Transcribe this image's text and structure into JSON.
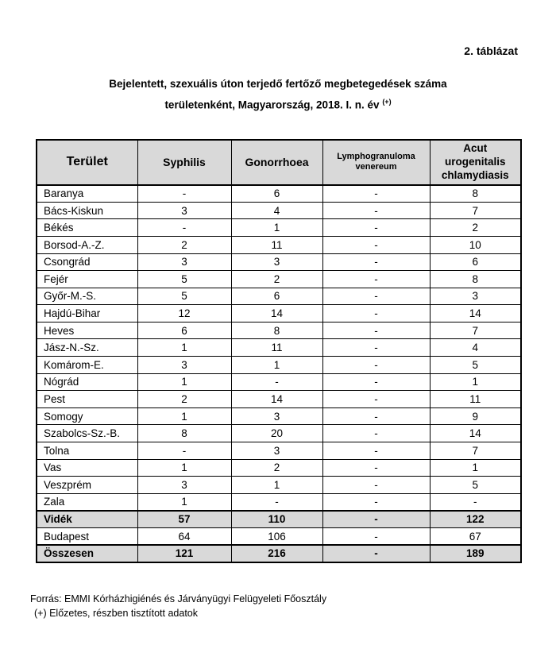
{
  "page": {
    "table_label": "2. táblázat",
    "title_line1": "Bejelentett, szexuális úton terjedő fertőző megbetegedések száma",
    "title_line2": "területenként, Magyarország, 2018. I. n. év",
    "title_superscript": "(+)",
    "footer_source": "Forrás: EMMI Kórházhigiénés és Járványügyi Felügyeleti Főosztály",
    "footer_note": "(+) Előzetes, részben tisztított adatok"
  },
  "table": {
    "columns": [
      "Terület",
      "Syphilis",
      "Gonorrhoea",
      "Lymphogranuloma venereum",
      "Acut urogenitalis chlamydiasis"
    ],
    "rows": [
      {
        "name": "Baranya",
        "values": [
          "-",
          "6",
          "-",
          "8"
        ],
        "summary": false
      },
      {
        "name": "Bács-Kiskun",
        "values": [
          "3",
          "4",
          "-",
          "7"
        ],
        "summary": false
      },
      {
        "name": "Békés",
        "values": [
          "-",
          "1",
          "-",
          "2"
        ],
        "summary": false
      },
      {
        "name": "Borsod-A.-Z.",
        "values": [
          "2",
          "11",
          "-",
          "10"
        ],
        "summary": false
      },
      {
        "name": "Csongrád",
        "values": [
          "3",
          "3",
          "-",
          "6"
        ],
        "summary": false
      },
      {
        "name": "Fejér",
        "values": [
          "5",
          "2",
          "-",
          "8"
        ],
        "summary": false
      },
      {
        "name": "Győr-M.-S.",
        "values": [
          "5",
          "6",
          "-",
          "3"
        ],
        "summary": false
      },
      {
        "name": "Hajdú-Bihar",
        "values": [
          "12",
          "14",
          "-",
          "14"
        ],
        "summary": false
      },
      {
        "name": "Heves",
        "values": [
          "6",
          "8",
          "-",
          "7"
        ],
        "summary": false
      },
      {
        "name": "Jász-N.-Sz.",
        "values": [
          "1",
          "11",
          "-",
          "4"
        ],
        "summary": false
      },
      {
        "name": "Komárom-E.",
        "values": [
          "3",
          "1",
          "-",
          "5"
        ],
        "summary": false
      },
      {
        "name": "Nógrád",
        "values": [
          "1",
          "-",
          "-",
          "1"
        ],
        "summary": false
      },
      {
        "name": "Pest",
        "values": [
          "2",
          "14",
          "-",
          "11"
        ],
        "summary": false
      },
      {
        "name": "Somogy",
        "values": [
          "1",
          "3",
          "-",
          "9"
        ],
        "summary": false
      },
      {
        "name": "Szabolcs-Sz.-B.",
        "values": [
          "8",
          "20",
          "-",
          "14"
        ],
        "summary": false
      },
      {
        "name": "Tolna",
        "values": [
          "-",
          "3",
          "-",
          "7"
        ],
        "summary": false
      },
      {
        "name": "Vas",
        "values": [
          "1",
          "2",
          "-",
          "1"
        ],
        "summary": false
      },
      {
        "name": "Veszprém",
        "values": [
          "3",
          "1",
          "-",
          "5"
        ],
        "summary": false
      },
      {
        "name": "Zala",
        "values": [
          "1",
          "-",
          "-",
          "-"
        ],
        "summary": false
      },
      {
        "name": "Vidék",
        "values": [
          "57",
          "110",
          "-",
          "122"
        ],
        "summary": true
      },
      {
        "name": "Budapest",
        "values": [
          "64",
          "106",
          "-",
          "67"
        ],
        "summary": false
      },
      {
        "name": "Összesen",
        "values": [
          "121",
          "216",
          "-",
          "189"
        ],
        "summary": true
      }
    ]
  },
  "colors": {
    "header_background": "#d9d9d9",
    "border": "#000000",
    "text": "#000000",
    "page_background": "#ffffff"
  }
}
